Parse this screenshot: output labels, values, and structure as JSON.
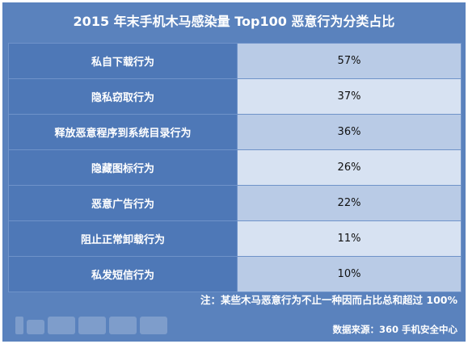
{
  "title": "2015 年末手机木马感染量 Top100 恶意行为分类占比",
  "rows": [
    {
      "behavior": "私自下载行为",
      "share": "57%"
    },
    {
      "behavior": "隐私窃取行为",
      "share": "37%"
    },
    {
      "behavior": "释放恶意程序到系统目录行为",
      "share": "36%"
    },
    {
      "behavior": "隐藏图标行为",
      "share": "26%"
    },
    {
      "behavior": "恶意广告行为",
      "share": "22%"
    },
    {
      "behavior": "阻止正常卸载行为",
      "share": "11%"
    },
    {
      "behavior": "私发短信行为",
      "share": "10%"
    }
  ],
  "note": "注：某些木马恶意行为不止一种因而占比总和超过 100%",
  "source": "数据来源：360 手机安全中心",
  "colors": {
    "frame": "#5a82bd",
    "label_cell": "#4e78b7",
    "value_cell_dark": "#b9cbe6",
    "value_cell_light": "#d7e2f2"
  }
}
